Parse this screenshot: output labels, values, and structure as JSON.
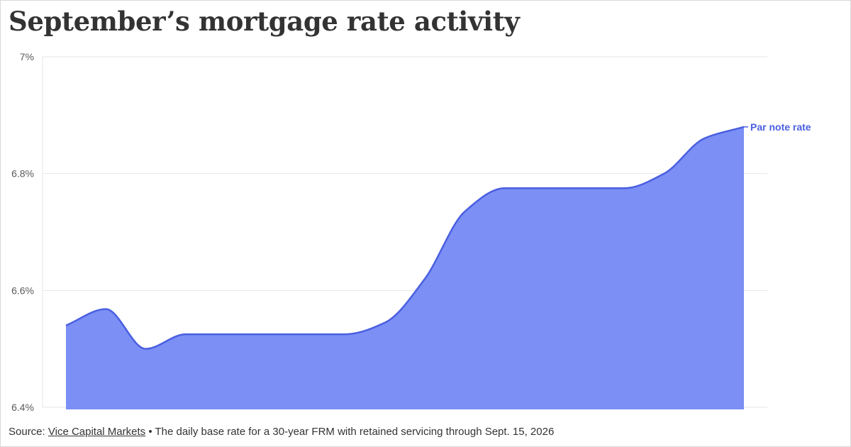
{
  "page": {
    "title": "September’s mortgage rate activity"
  },
  "footer": {
    "source_prefix": "Source: ",
    "source_link": "Vice Capital Markets",
    "bullet": " • ",
    "note": "The daily base rate for a 30-year FRM with retained servicing through Sept. 15, 2026"
  },
  "colors": {
    "fill": "#7b8ff5",
    "line": "#4a5fe0",
    "label": "#4a5fe0",
    "grid": "#e6e6e6",
    "title": "#333333"
  },
  "chart_data": {
    "type": "area",
    "title": "September’s mortgage rate activity",
    "xlabel": "",
    "ylabel": "",
    "ylim": [
      6.4,
      7.0
    ],
    "yticks": [
      6.4,
      6.6,
      6.8,
      7.0
    ],
    "ytick_labels": [
      "6.4%",
      "6.6%",
      "6.8%",
      "7%"
    ],
    "grid": true,
    "legend": "inline-right",
    "series": [
      {
        "name": "Par note rate",
        "values": [
          6.54,
          6.568,
          6.5,
          6.525,
          6.525,
          6.525,
          6.525,
          6.525,
          6.545,
          6.62,
          6.735,
          6.775,
          6.775,
          6.775,
          6.775,
          6.8,
          6.86,
          6.88
        ]
      }
    ]
  }
}
